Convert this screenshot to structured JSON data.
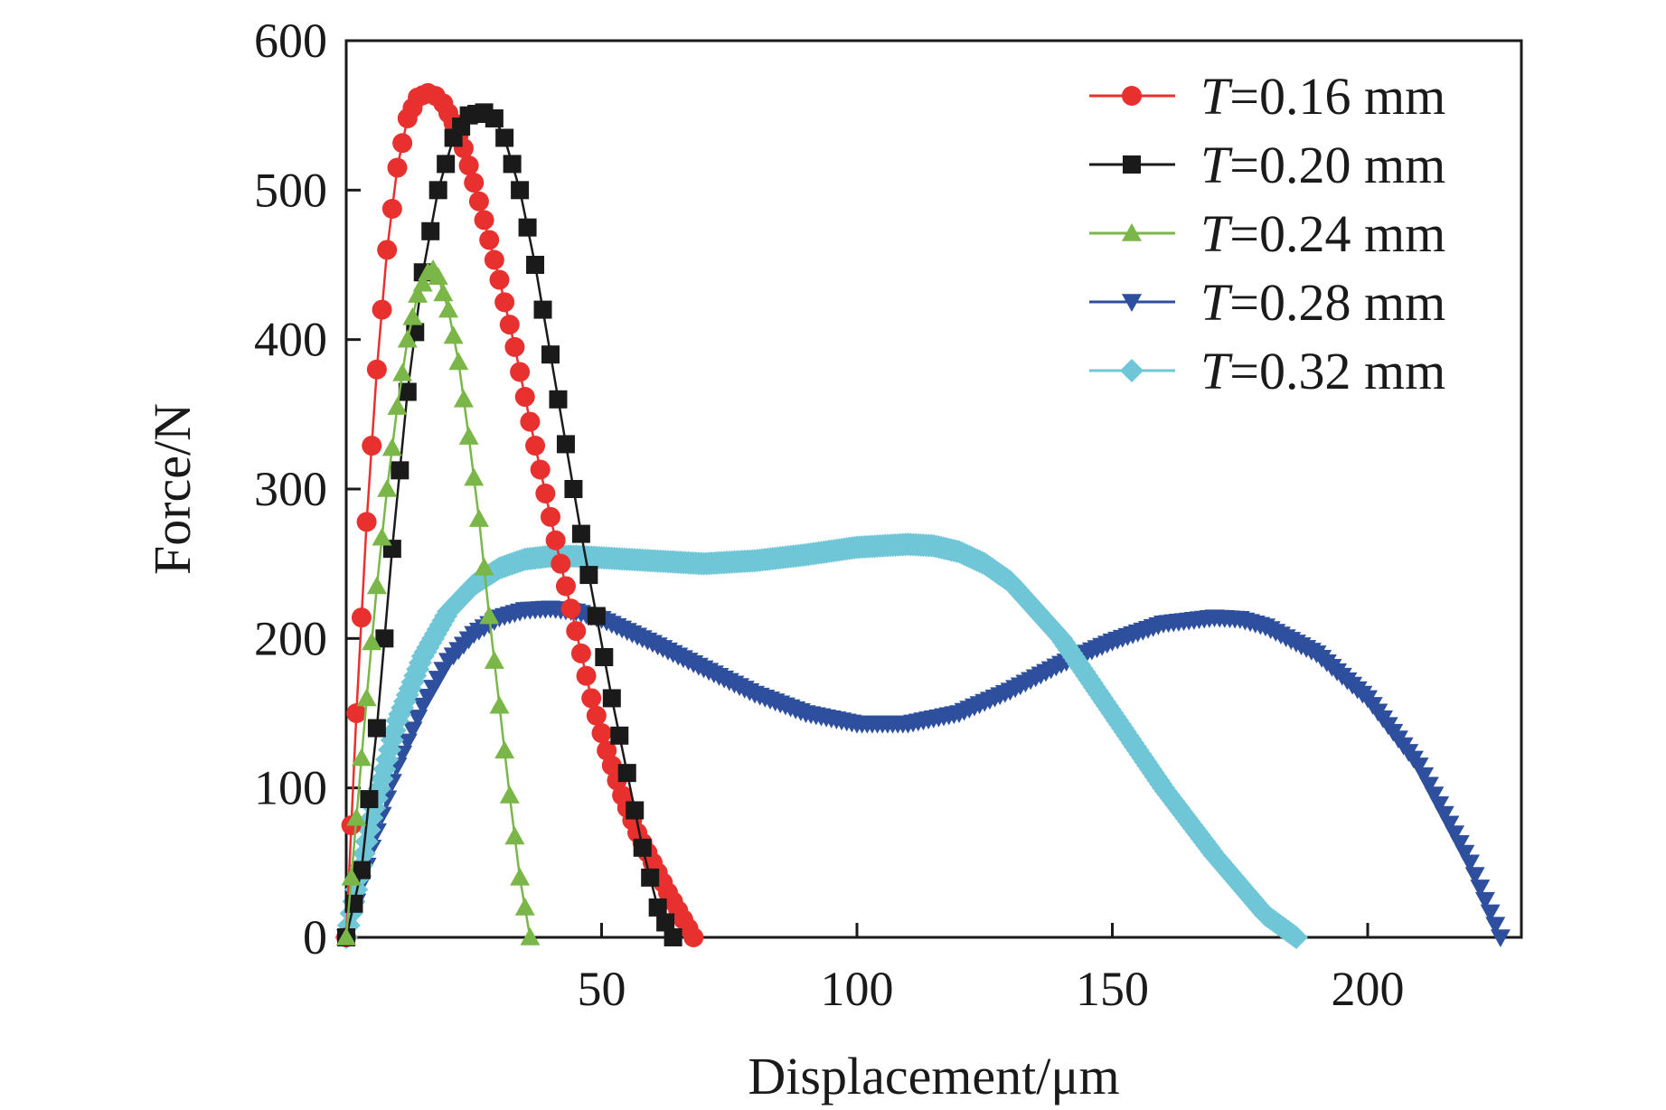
{
  "chart_data": {
    "type": "line",
    "title": "",
    "xlabel": "Displacement/μm",
    "ylabel": "Force/N",
    "xlim": [
      0,
      230
    ],
    "ylim": [
      0,
      600
    ],
    "xticks": [
      50,
      100,
      150,
      200
    ],
    "yticks": [
      0,
      100,
      200,
      300,
      400,
      500,
      600
    ],
    "grid": false,
    "legend_position": "top-right",
    "series": [
      {
        "name": "T=0.16 mm",
        "name_var": "T",
        "name_rest": "=0.16 mm",
        "color": "#e8312f",
        "line_color": "#e8312f",
        "marker": "circle",
        "x": [
          0,
          2,
          4,
          6,
          8,
          10,
          12,
          14,
          16,
          17.5,
          19,
          21,
          23,
          25,
          27,
          30,
          33,
          36,
          39,
          42,
          45,
          48,
          51,
          54,
          57,
          60,
          63,
          66,
          68
        ],
        "y": [
          0,
          150,
          278,
          380,
          460,
          515,
          548,
          562,
          565,
          563,
          558,
          545,
          528,
          505,
          480,
          440,
          395,
          345,
          297,
          250,
          205,
          160,
          125,
          95,
          70,
          50,
          30,
          12,
          0
        ]
      },
      {
        "name": "T=0.20 mm",
        "name_var": "T",
        "name_rest": "=0.20 mm",
        "color": "#1a1a1a",
        "line_color": "#1a1a1a",
        "marker": "square",
        "x": [
          0,
          3,
          6,
          9,
          12,
          15,
          18,
          21,
          24,
          27,
          29,
          31,
          34,
          37,
          40,
          43,
          46,
          49,
          52,
          55,
          58,
          61,
          64
        ],
        "y": [
          0,
          45,
          140,
          260,
          365,
          445,
          500,
          535,
          550,
          552,
          548,
          535,
          500,
          450,
          390,
          330,
          270,
          215,
          160,
          110,
          60,
          20,
          0
        ]
      },
      {
        "name": "T=0.24 mm",
        "name_var": "T",
        "name_rest": "=0.24 mm",
        "color": "#7ab648",
        "line_color": "#7ab648",
        "marker": "triangle-up",
        "x": [
          0,
          2,
          4,
          6,
          8,
          10,
          12,
          14,
          16,
          17,
          18,
          20,
          22,
          24,
          26,
          28,
          30,
          32,
          34,
          36
        ],
        "y": [
          0,
          80,
          160,
          235,
          300,
          355,
          400,
          430,
          445,
          447,
          442,
          420,
          385,
          335,
          280,
          215,
          155,
          95,
          40,
          0
        ]
      },
      {
        "name": "T=0.28 mm",
        "name_var": "T",
        "name_rest": "=0.28 mm",
        "color": "#2e4f9e",
        "line_color": "#2e4f9e",
        "marker": "triangle-down",
        "x": [
          0,
          5,
          10,
          15,
          20,
          25,
          30,
          35,
          40,
          45,
          50,
          60,
          70,
          80,
          90,
          100,
          110,
          120,
          130,
          140,
          150,
          160,
          170,
          175,
          180,
          190,
          200,
          210,
          220,
          226
        ],
        "y": [
          0,
          60,
          115,
          155,
          185,
          203,
          214,
          219,
          220,
          218,
          213,
          197,
          180,
          163,
          150,
          143,
          143,
          150,
          165,
          183,
          198,
          210,
          214,
          213,
          208,
          190,
          160,
          115,
          50,
          0
        ]
      },
      {
        "name": "T=0.32 mm",
        "name_var": "T",
        "name_rest": "=0.32 mm",
        "color": "#6ec6d6",
        "line_color": "#6ec6d6",
        "marker": "diamond",
        "x": [
          0,
          5,
          10,
          15,
          20,
          25,
          30,
          35,
          40,
          45,
          50,
          60,
          70,
          80,
          90,
          100,
          110,
          115,
          120,
          125,
          130,
          140,
          150,
          160,
          170,
          180,
          186
        ],
        "y": [
          0,
          80,
          145,
          188,
          218,
          236,
          247,
          253,
          255,
          255,
          254,
          252,
          250,
          252,
          256,
          261,
          263,
          262,
          258,
          250,
          238,
          200,
          150,
          100,
          55,
          15,
          0
        ]
      }
    ]
  }
}
